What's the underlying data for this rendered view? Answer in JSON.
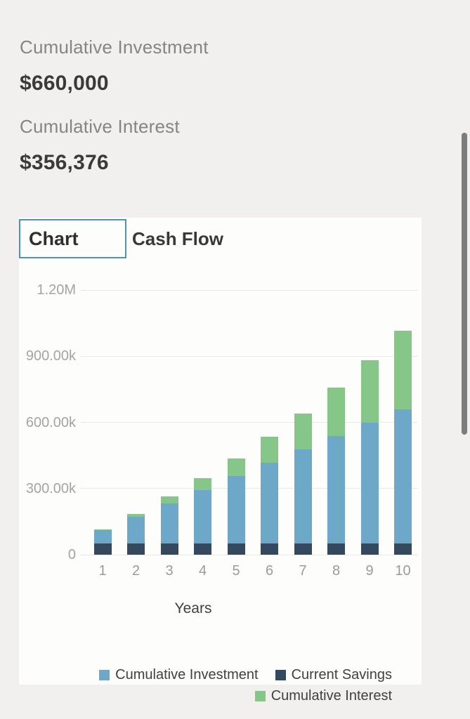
{
  "summary": {
    "investment_label": "Cumulative Investment",
    "investment_value": "$660,000",
    "interest_label": "Cumulative Interest",
    "interest_value": "$356,376"
  },
  "tabs": {
    "chart_label": "Chart",
    "cash_flow_label": "Cash Flow",
    "selected": "Chart"
  },
  "chart_data": {
    "type": "bar",
    "stacked": true,
    "title": "",
    "xlabel": "Years",
    "ylabel": "",
    "categories": [
      "1",
      "2",
      "3",
      "4",
      "5",
      "6",
      "7",
      "8",
      "9",
      "10"
    ],
    "series": [
      {
        "name": "Current Savings",
        "color": "#34485E",
        "values": [
          50000,
          50000,
          50000,
          50000,
          50000,
          50000,
          50000,
          50000,
          50000,
          50000
        ]
      },
      {
        "name": "Cumulative Investment",
        "color": "#6DA8C8",
        "values": [
          61000,
          122000,
          183000,
          244000,
          305000,
          366000,
          427000,
          488000,
          549000,
          610000
        ]
      },
      {
        "name": "Cumulative Interest",
        "color": "#86C688",
        "values": [
          4250,
          14050,
          29850,
          52200,
          81650,
          118750,
          164200,
          218700,
          283000,
          356376
        ]
      }
    ],
    "stack_order_bottom_to_top": [
      "Current Savings",
      "Cumulative Investment",
      "Cumulative Interest"
    ],
    "legend": [
      {
        "label": "Cumulative Investment",
        "color": "#6DA8C8"
      },
      {
        "label": "Current Savings",
        "color": "#34485E"
      },
      {
        "label": "Cumulative Interest",
        "color": "#86C688"
      }
    ],
    "legend_position": "bottom-right",
    "grid": true,
    "ylim": [
      0,
      1200000
    ],
    "y_ticks": [
      {
        "label": "0",
        "value": 0
      },
      {
        "label": "300.00k",
        "value": 300000
      },
      {
        "label": "600.00k",
        "value": 600000
      },
      {
        "label": "900.00k",
        "value": 900000
      },
      {
        "label": "1.20M",
        "value": 1200000
      }
    ]
  },
  "colors": {
    "background": "#f1f0ee",
    "panel": "#fdfdfc",
    "tab_border": "#4d92ba",
    "grid_line": "#e8e8e8",
    "tick_text": "#a4a4a4",
    "scrollbar": "#7d7d7d"
  }
}
